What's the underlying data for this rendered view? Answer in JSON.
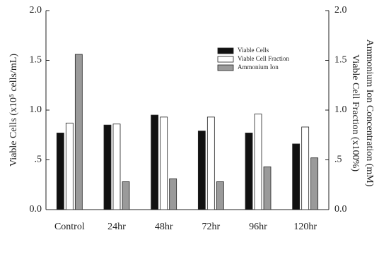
{
  "chart_data": {
    "type": "bar",
    "categories": [
      "Control",
      "24hr",
      "48hr",
      "72hr",
      "96hr",
      "120hr"
    ],
    "ylabel": "Viable Cells (x10⁵ cells/mL)",
    "y2label": [
      "Viable Cell Fraction (x100%)",
      "Ammonium Ion Concentration (mM)"
    ],
    "ylim": [
      0,
      2.0
    ],
    "yticks": [
      {
        "value": 0,
        "label": "0.0"
      },
      {
        "value": 0.5,
        "label": ".5"
      },
      {
        "value": 1.0,
        "label": "1.0"
      },
      1.5,
      {
        "value": 2.0,
        "label": "2.0"
      }
    ],
    "y2lim": [
      0,
      2.0
    ],
    "y2ticks": [
      {
        "value": 0,
        "label": "0.0"
      },
      {
        "value": 0.5,
        "label": ".5"
      },
      {
        "value": 1.0,
        "label": "1.0"
      },
      1.5,
      {
        "value": 2.0,
        "label": "2.0"
      }
    ],
    "legend": "upper right",
    "series": [
      {
        "name": "Viable Cells",
        "color": "#111111",
        "values": [
          0.77,
          0.85,
          0.95,
          0.79,
          0.77,
          0.66
        ]
      },
      {
        "name": "Viable Cell Fraction",
        "color": "#ffffff",
        "axis": "y2",
        "values": [
          0.87,
          0.86,
          0.93,
          0.93,
          0.96,
          0.83
        ]
      },
      {
        "name": "Ammonium Ion",
        "color": "#9a9a9a",
        "axis": "y2",
        "values": [
          1.56,
          0.28,
          0.31,
          0.28,
          0.43,
          0.52
        ]
      }
    ]
  }
}
